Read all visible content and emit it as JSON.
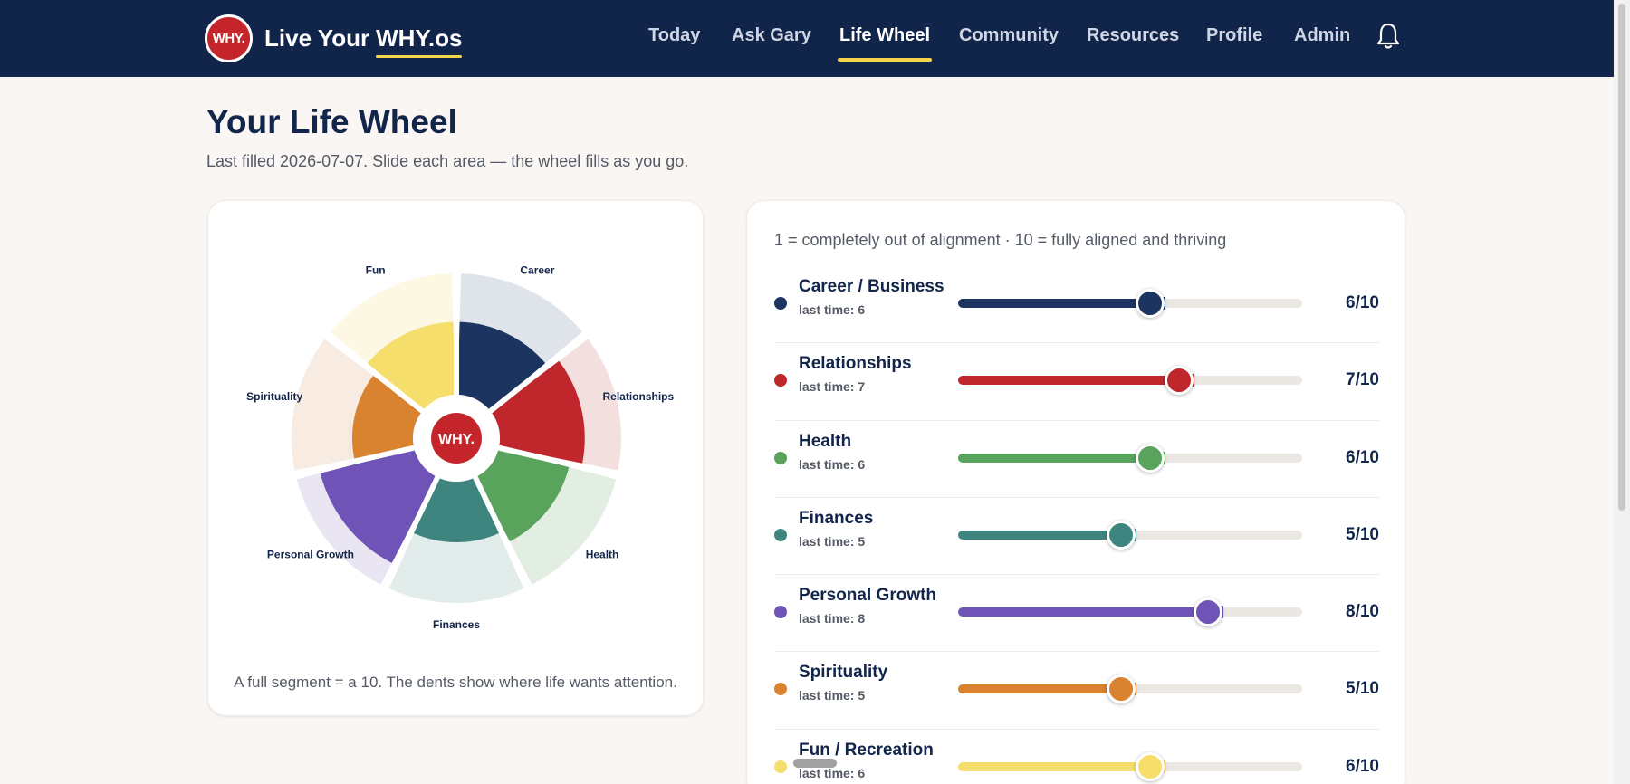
{
  "header": {
    "logo_text": "WHY.",
    "brand_prefix": "Live Your",
    "brand_suffix": "WHY.os",
    "nav": [
      {
        "label": "Today",
        "active": false
      },
      {
        "label": "Ask Gary",
        "active": false
      },
      {
        "label": "Life Wheel",
        "active": true
      },
      {
        "label": "Community",
        "active": false
      },
      {
        "label": "Resources",
        "active": false
      },
      {
        "label": "Profile",
        "active": false
      },
      {
        "label": "Admin",
        "active": false
      }
    ],
    "notifications_icon": "bell-icon",
    "accent": "#f5d34a",
    "background": "#11244a"
  },
  "page": {
    "title": "Your Life Wheel",
    "subtitle": "Last filled 2026-07-07. Slide each area — the wheel fills as you go."
  },
  "wheel": {
    "center_text": "WHY.",
    "caption": "A full segment = a 10. The dents show where life wants attention.",
    "max": 10
  },
  "scale_note": "1 = completely out of alignment · 10 = fully aligned and thriving",
  "areas": [
    {
      "name": "Career / Business",
      "wheel_label": "Career",
      "score": 6,
      "score_text": "6/10",
      "last": "last time: 6",
      "color": "#1c3560",
      "tint": "#dfe3ea"
    },
    {
      "name": "Relationships",
      "wheel_label": "Relationships",
      "score": 7,
      "score_text": "7/10",
      "last": "last time: 7",
      "color": "#c0272d",
      "tint": "#f4dfdf"
    },
    {
      "name": "Health",
      "wheel_label": "Health",
      "score": 6,
      "score_text": "6/10",
      "last": "last time: 6",
      "color": "#5aa35c",
      "tint": "#e3eee2"
    },
    {
      "name": "Finances",
      "wheel_label": "Finances",
      "score": 5,
      "score_text": "5/10",
      "last": "last time: 5",
      "color": "#3e8580",
      "tint": "#e2ecea"
    },
    {
      "name": "Personal Growth",
      "wheel_label": "Personal Growth",
      "score": 8,
      "score_text": "8/10",
      "last": "last time: 8",
      "color": "#6f53b6",
      "tint": "#e9e5f2"
    },
    {
      "name": "Spirituality",
      "wheel_label": "Spirituality",
      "score": 5,
      "score_text": "5/10",
      "last": "last time: 5",
      "color": "#d9822f",
      "tint": "#f8ebe1"
    },
    {
      "name": "Fun / Recreation",
      "wheel_label": "Fun",
      "score": 6,
      "score_text": "6/10",
      "last": "last time: 6",
      "color": "#f6de6d",
      "tint": "#fdf8e4"
    }
  ]
}
